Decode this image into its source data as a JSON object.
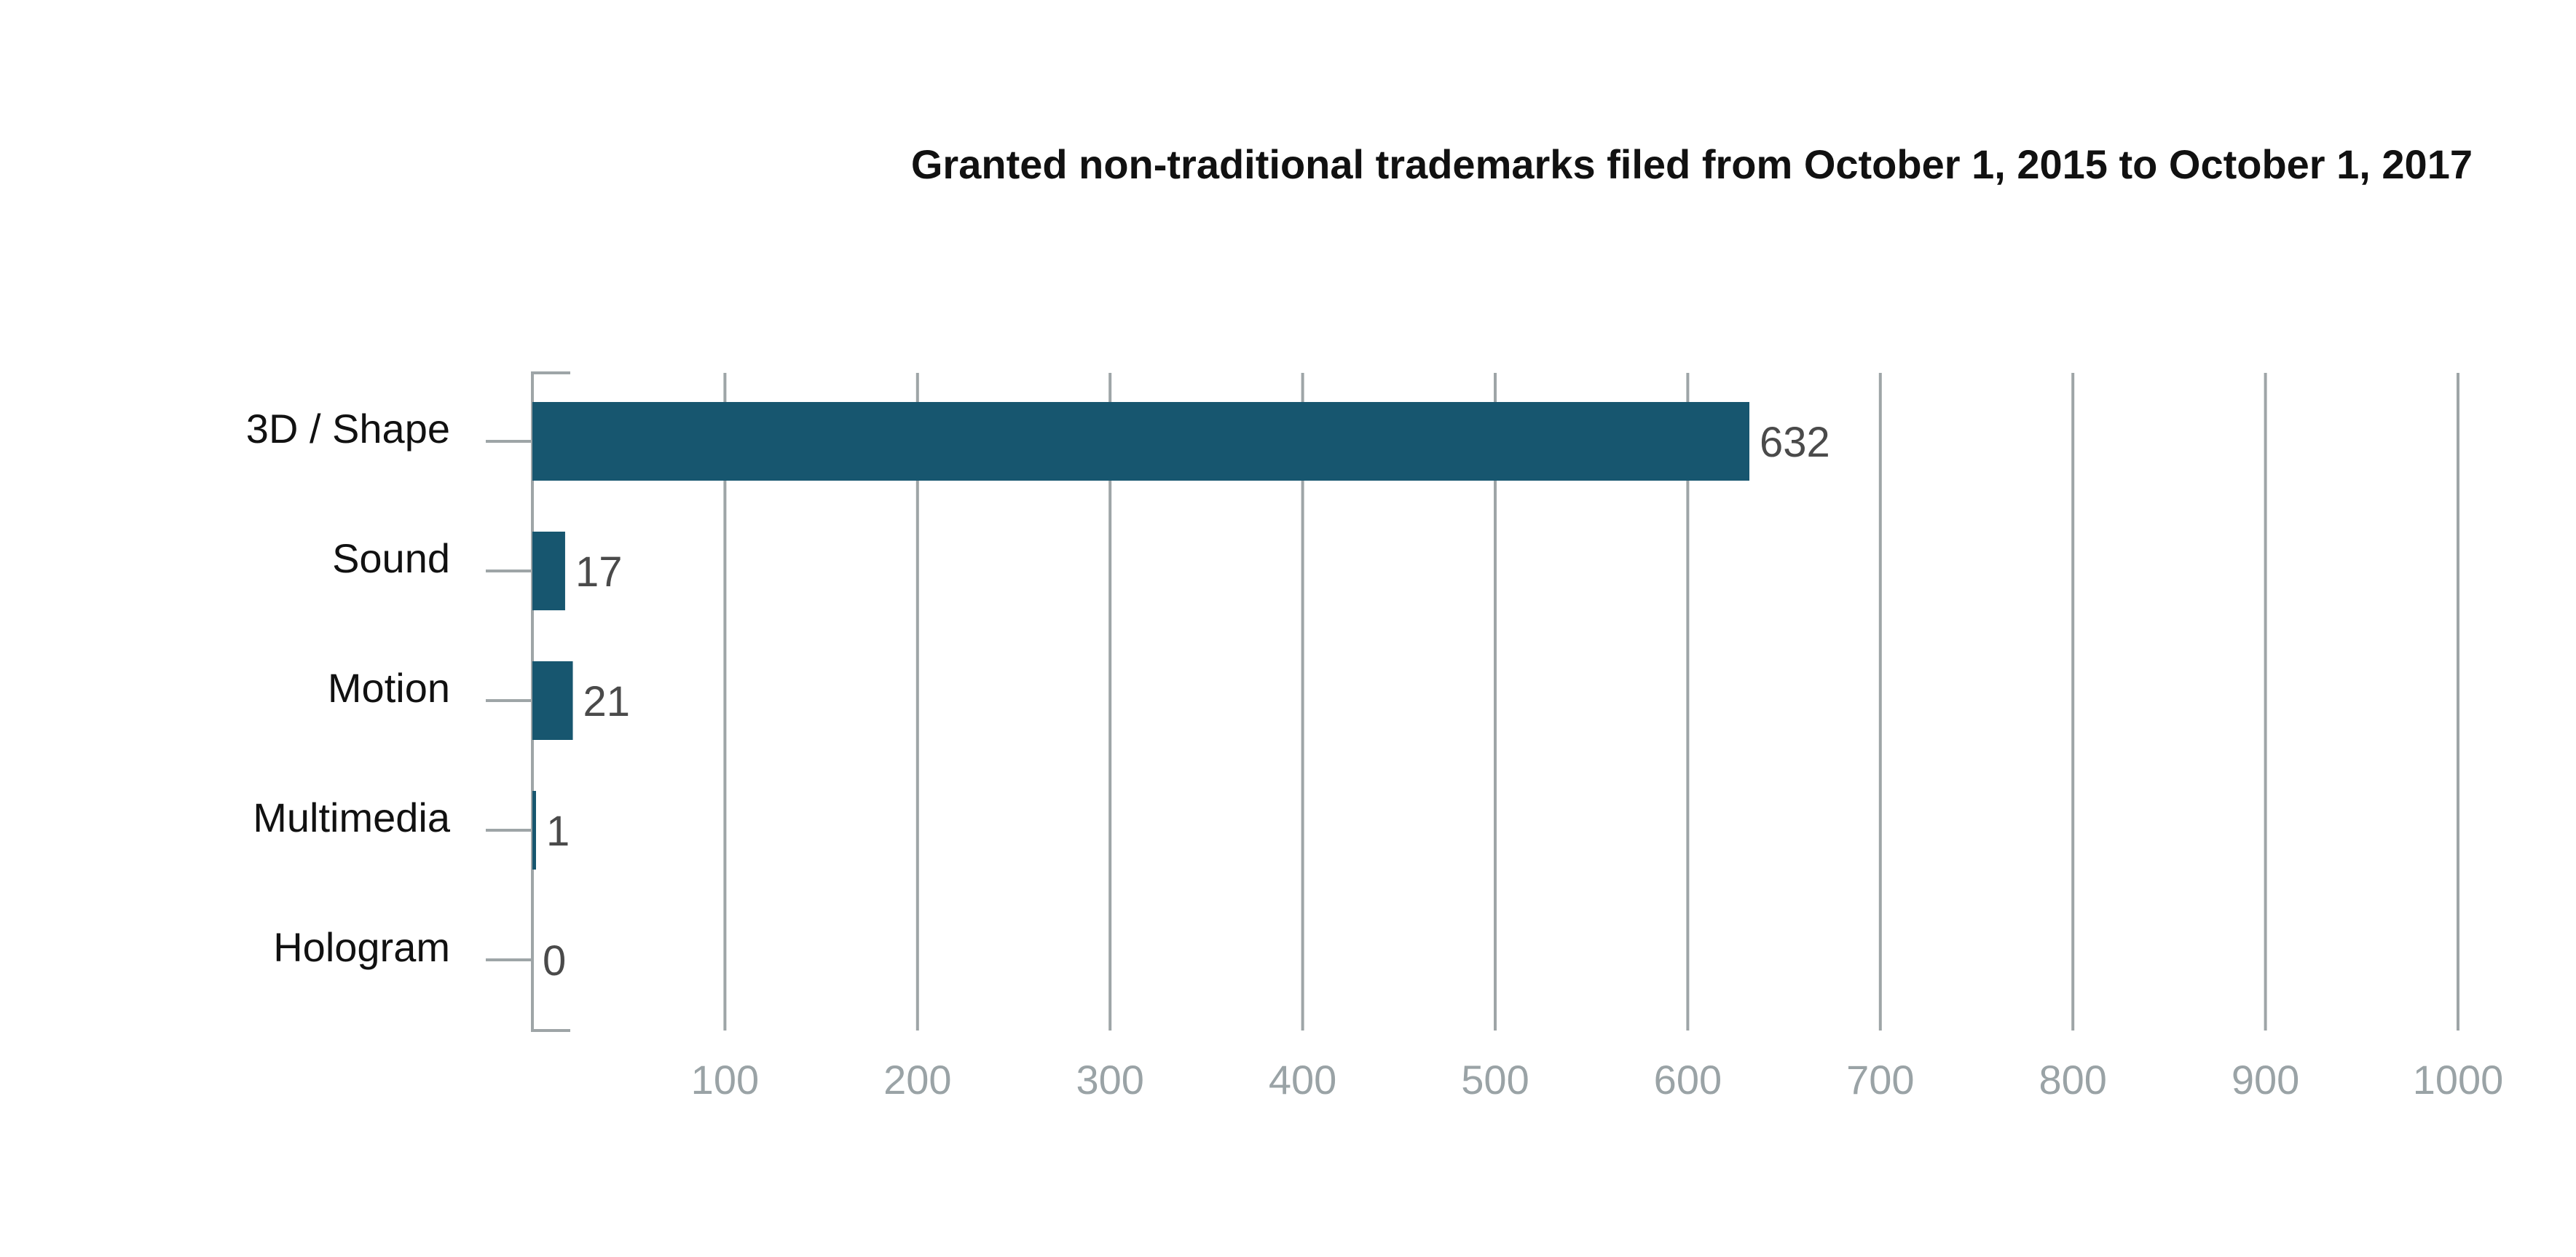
{
  "chart_data": {
    "type": "bar",
    "orientation": "horizontal",
    "title": "Granted non-traditional trademarks filed from October 1, 2015 to October 1, 2017",
    "categories": [
      "3D / Shape",
      "Sound",
      "Motion",
      "Multimedia",
      "Hologram"
    ],
    "values": [
      632,
      17,
      21,
      1,
      0
    ],
    "xlim": [
      0,
      1000
    ],
    "xticks": [
      100,
      200,
      300,
      400,
      500,
      600,
      700,
      800,
      900,
      1000
    ],
    "xtick_labels": [
      "100",
      "200",
      "300",
      "400",
      "500",
      "600",
      "700",
      "800",
      "900",
      "1000"
    ],
    "value_labels": [
      "632",
      "17",
      "21",
      "1",
      "0"
    ],
    "xlabel": "",
    "ylabel": "",
    "grid": true,
    "legend": "none",
    "colors": {
      "bar": "#17566f",
      "grid": "#9ea5a7",
      "tick_text": "#9aa3a6",
      "value_text": "#4a4a4a",
      "label_text": "#111111"
    }
  }
}
